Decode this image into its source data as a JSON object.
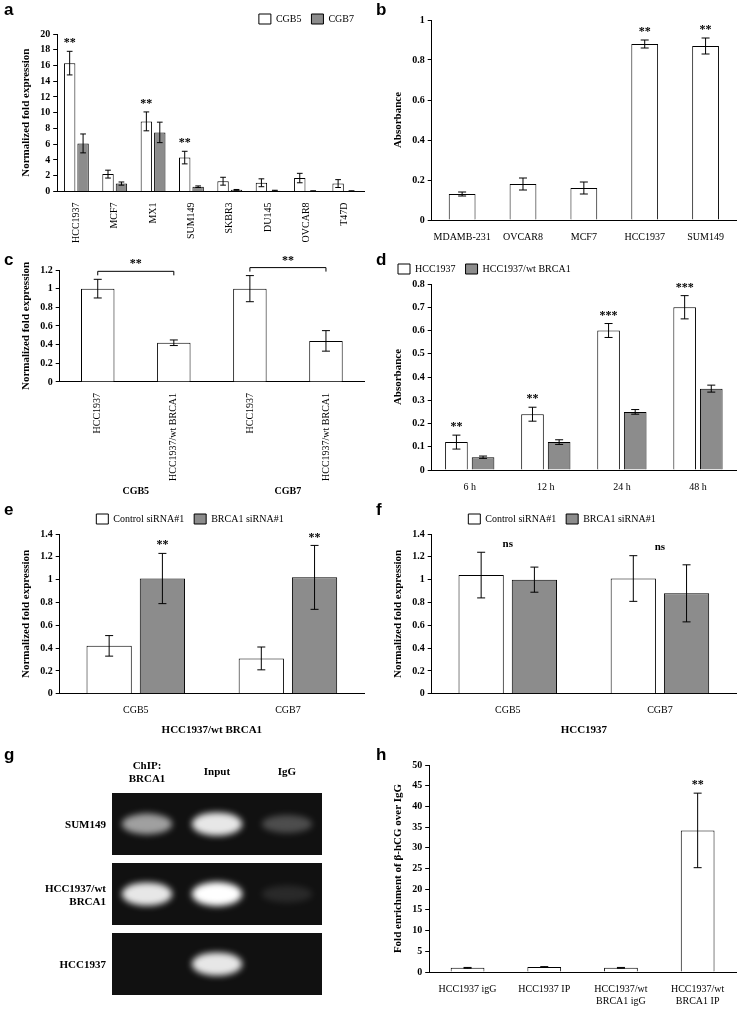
{
  "chart_data": [
    {
      "type": "bar",
      "title": "a",
      "ylabel": "Normalized fold expression",
      "categories": [
        "HCC1937",
        "MCF7",
        "MX1",
        "SUM149",
        "SKBR3",
        "DU145",
        "OVCAR8",
        "T47D"
      ],
      "series": [
        {
          "name": "CGB5",
          "color": "#ffffff",
          "values": [
            16.3,
            2.2,
            8.9,
            4.3,
            1.3,
            1.1,
            1.7,
            1.0
          ],
          "errors": [
            1.5,
            0.5,
            1.2,
            0.8,
            0.5,
            0.5,
            0.6,
            0.5
          ]
        },
        {
          "name": "CGB7",
          "color": "#8c8c8c",
          "values": [
            6.1,
            1.0,
            7.5,
            0.6,
            0.2,
            0.1,
            0.05,
            0.05
          ],
          "errors": [
            1.2,
            0.2,
            1.3,
            0.1,
            0.05,
            0.05,
            0.02,
            0.02
          ]
        }
      ],
      "ylim": [
        0,
        20
      ],
      "yticks": [
        0,
        2,
        4,
        6,
        8,
        10,
        12,
        14,
        16,
        18,
        20
      ],
      "grid": false,
      "legend": "upper right",
      "annotations": [
        {
          "text": "**",
          "series": 0,
          "index": 0
        },
        {
          "text": "**",
          "series": 0,
          "index": 2
        },
        {
          "text": "**",
          "series": 0,
          "index": 3
        }
      ]
    },
    {
      "type": "bar",
      "title": "b",
      "ylabel": "Absorbance",
      "categories": [
        "MDAMB-231",
        "OVCAR8",
        "MCF7",
        "HCC1937",
        "SUM149"
      ],
      "values": [
        0.13,
        0.18,
        0.16,
        0.88,
        0.87
      ],
      "errors": [
        0.01,
        0.03,
        0.03,
        0.02,
        0.04
      ],
      "color": "#ffffff",
      "ylim": [
        0,
        1
      ],
      "yticks": [
        0,
        0.2,
        0.4,
        0.6,
        0.8,
        1
      ],
      "grid": false,
      "annotations": [
        {
          "text": "**",
          "series": 0,
          "index": 3
        },
        {
          "text": "**",
          "series": 0,
          "index": 4
        }
      ]
    },
    {
      "type": "bar",
      "title": "c",
      "ylabel": "Normalized fold expression",
      "categories": [
        "HCC1937",
        "HCC1937/wt BRCA1",
        "HCC1937",
        "HCC1937/wt BRCA1"
      ],
      "values": [
        1,
        0.42,
        1,
        0.44
      ],
      "errors": [
        0.1,
        0.03,
        0.14,
        0.11
      ],
      "color": "#ffffff",
      "x_groups": [
        {
          "label": "CGB5",
          "from": 0,
          "to": 1
        },
        {
          "label": "CGB7",
          "from": 2,
          "to": 3
        }
      ],
      "ylim": [
        0,
        1.2
      ],
      "yticks": [
        0,
        0.2,
        0.4,
        0.6,
        0.8,
        1,
        1.2
      ],
      "grid": false,
      "annotations": [
        {
          "text": "**",
          "series": 0,
          "from": 0,
          "to": 1
        },
        {
          "text": "**",
          "series": 0,
          "from": 2,
          "to": 3
        }
      ]
    },
    {
      "type": "bar",
      "title": "d",
      "ylabel": "Absorbance",
      "categories": [
        "6 h",
        "12 h",
        "24 h",
        "48 h"
      ],
      "series": [
        {
          "name": "HCC1937",
          "color": "#ffffff",
          "values": [
            0.12,
            0.24,
            0.6,
            0.7
          ],
          "errors": [
            0.03,
            0.03,
            0.03,
            0.05
          ]
        },
        {
          "name": "HCC1937/wt BRCA1",
          "color": "#8c8c8c",
          "values": [
            0.055,
            0.12,
            0.25,
            0.35
          ],
          "errors": [
            0.005,
            0.01,
            0.01,
            0.015
          ]
        }
      ],
      "ylim": [
        0,
        0.8
      ],
      "yticks": [
        0,
        0.1,
        0.2,
        0.3,
        0.4,
        0.5,
        0.6,
        0.7,
        0.8
      ],
      "grid": false,
      "legend": "upper left",
      "annotations": [
        {
          "text": "**",
          "series": 0,
          "index": 0
        },
        {
          "text": "**",
          "series": 0,
          "index": 1
        },
        {
          "text": "***",
          "series": 0,
          "index": 2
        },
        {
          "text": "***",
          "series": 0,
          "index": 3
        }
      ]
    },
    {
      "type": "bar",
      "title": "e",
      "ylabel": "Normalized fold expression",
      "xlabel": "HCC1937/wt BRCA1",
      "categories": [
        "CGB5",
        "CGB7"
      ],
      "series": [
        {
          "name": "Control siRNA#1",
          "color": "#ffffff",
          "values": [
            0.42,
            0.31
          ],
          "errors": [
            0.09,
            0.1
          ]
        },
        {
          "name": "BRCA1 siRNA#1",
          "color": "#8c8c8c",
          "values": [
            1.01,
            1.02
          ],
          "errors": [
            0.22,
            0.28
          ]
        }
      ],
      "ylim": [
        0,
        1.4
      ],
      "yticks": [
        0,
        0.2,
        0.4,
        0.6,
        0.8,
        1,
        1.2,
        1.4
      ],
      "grid": false,
      "legend": "upper center",
      "annotations": [
        {
          "text": "**",
          "series": 1,
          "index": 0
        },
        {
          "text": "**",
          "series": 1,
          "index": 1
        }
      ]
    },
    {
      "type": "bar",
      "title": "f",
      "ylabel": "Normalized fold expression",
      "xlabel": "HCC1937",
      "categories": [
        "CGB5",
        "CGB7"
      ],
      "series": [
        {
          "name": "Control siRNA#1",
          "color": "#ffffff",
          "values": [
            1.04,
            1.01
          ],
          "errors": [
            0.2,
            0.2
          ]
        },
        {
          "name": "BRCA1 siRNA#1",
          "color": "#8c8c8c",
          "values": [
            1.0,
            0.88
          ],
          "errors": [
            0.11,
            0.25
          ]
        }
      ],
      "ylim": [
        0,
        1.4
      ],
      "yticks": [
        0,
        0.2,
        0.4,
        0.6,
        0.8,
        1,
        1.2,
        1.4
      ],
      "grid": false,
      "legend": "upper center",
      "annotations": [
        {
          "text": "ns",
          "index": 0
        },
        {
          "text": "ns",
          "index": 1
        }
      ]
    },
    {
      "type": "bar",
      "title": "h",
      "ylabel": "Fold enrichment of β-hCG over IgG",
      "categories": [
        "HCC1937 igG",
        "HCC1937 IP",
        "HCC1937/wt BRCA1 igG",
        "HCC1937/wt BRCA1 IP"
      ],
      "values": [
        1,
        1.2,
        1,
        34.2
      ],
      "errors": [
        0.1,
        0.1,
        0.1,
        9
      ],
      "color": "#ffffff",
      "ylim": [
        0,
        50
      ],
      "yticks": [
        0,
        5,
        10,
        15,
        20,
        25,
        30,
        35,
        40,
        45,
        50
      ],
      "grid": false,
      "annotations": [
        {
          "text": "**",
          "series": 0,
          "index": 3
        }
      ]
    }
  ],
  "gel": {
    "title": "g",
    "columns": [
      "ChIP: BRCA1",
      "Input",
      "IgG"
    ],
    "rows": [
      {
        "label": "SUM149",
        "band_intensity": [
          0.6,
          0.9,
          0.25
        ]
      },
      {
        "label": "HCC1937/wt BRCA1",
        "band_intensity": [
          0.9,
          1,
          0.1
        ]
      },
      {
        "label": "HCC1937",
        "band_intensity": [
          0,
          0.9,
          0
        ]
      }
    ]
  }
}
